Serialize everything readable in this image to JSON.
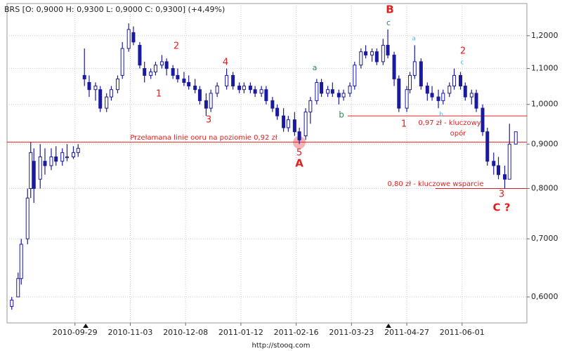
{
  "chart_data": {
    "type": "ohlc",
    "title": "BRS [O: 0,9000  H: 0,9300  L: 0,9000  C: 0,9300] (+4,49%)",
    "footer": "http://stooq.com",
    "color": "#1a1aa0",
    "log_scale": true,
    "grid": true,
    "xlim": [
      "2010-08-17",
      "2011-07-12"
    ],
    "xticks": [
      "2010-09-29",
      "2010-11-03",
      "2010-12-08",
      "2011-01-12",
      "2011-02-16",
      "2011-03-23",
      "2011-04-27",
      "2011-06-01"
    ],
    "ylim": [
      0.56,
      1.307
    ],
    "yticks": [
      {
        "value": 0.6,
        "label": "0,6000"
      },
      {
        "value": 0.7,
        "label": "0,7000"
      },
      {
        "value": 0.8,
        "label": "0,8000"
      },
      {
        "value": 0.9,
        "label": "0,9000"
      },
      {
        "value": 1.0,
        "label": "1,0000"
      },
      {
        "value": 1.1,
        "label": "1,1000"
      },
      {
        "value": 1.2,
        "label": "1,2000"
      }
    ],
    "x": [
      "2010-08-20",
      "2010-08-24",
      "2010-08-26",
      "2010-08-30",
      "2010-09-01",
      "2010-09-03",
      "2010-09-07",
      "2010-09-10",
      "2010-09-14",
      "2010-09-17",
      "2010-09-21",
      "2010-09-24",
      "2010-09-28",
      "2010-10-01",
      "2010-10-05",
      "2010-10-08",
      "2010-10-12",
      "2010-10-15",
      "2010-10-19",
      "2010-10-22",
      "2010-10-26",
      "2010-10-29",
      "2010-11-02",
      "2010-11-05",
      "2010-11-09",
      "2010-11-12",
      "2010-11-16",
      "2010-11-19",
      "2010-11-23",
      "2010-11-26",
      "2010-11-30",
      "2010-12-03",
      "2010-12-07",
      "2010-12-10",
      "2010-12-14",
      "2010-12-17",
      "2010-12-21",
      "2010-12-24",
      "2010-12-28",
      "2011-01-03",
      "2011-01-07",
      "2011-01-11",
      "2011-01-14",
      "2011-01-18",
      "2011-01-21",
      "2011-01-25",
      "2011-01-28",
      "2011-02-01",
      "2011-02-04",
      "2011-02-08",
      "2011-02-11",
      "2011-02-15",
      "2011-02-18",
      "2011-02-22",
      "2011-02-25",
      "2011-03-01",
      "2011-03-04",
      "2011-03-08",
      "2011-03-11",
      "2011-03-15",
      "2011-03-18",
      "2011-03-22",
      "2011-03-25",
      "2011-03-29",
      "2011-04-01",
      "2011-04-05",
      "2011-04-08",
      "2011-04-12",
      "2011-04-15",
      "2011-04-19",
      "2011-04-22",
      "2011-04-27",
      "2011-04-29",
      "2011-05-02",
      "2011-05-06",
      "2011-05-10",
      "2011-05-13",
      "2011-05-17",
      "2011-05-20",
      "2011-05-24",
      "2011-05-27",
      "2011-05-31",
      "2011-06-03",
      "2011-06-07",
      "2011-06-10",
      "2011-06-14",
      "2011-06-17",
      "2011-06-21",
      "2011-06-24",
      "2011-06-28",
      "2011-07-01",
      "2011-07-05"
    ],
    "open": [
      0.585,
      0.6,
      0.63,
      0.7,
      0.8,
      0.86,
      0.82,
      0.86,
      0.85,
      0.87,
      0.86,
      0.87,
      0.87,
      0.88,
      1.08,
      1.06,
      1.04,
      1.04,
      0.99,
      1.02,
      1.04,
      1.08,
      1.16,
      1.21,
      1.17,
      1.1,
      1.08,
      1.09,
      1.11,
      1.12,
      1.1,
      1.08,
      1.07,
      1.06,
      1.05,
      1.04,
      1.01,
      0.99,
      1.03,
      1.05,
      1.08,
      1.05,
      1.04,
      1.05,
      1.04,
      1.03,
      1.04,
      1.01,
      0.99,
      0.97,
      0.94,
      0.96,
      0.93,
      0.92,
      0.98,
      1.01,
      1.06,
      1.03,
      1.04,
      1.03,
      1.02,
      1.03,
      1.05,
      1.11,
      1.15,
      1.14,
      1.15,
      1.12,
      1.17,
      1.14,
      1.07,
      0.99,
      1.04,
      1.08,
      1.12,
      1.05,
      1.03,
      1.02,
      1.01,
      1.03,
      1.05,
      1.08,
      1.05,
      1.02,
      1.03,
      0.99,
      0.93,
      0.86,
      0.85,
      0.83,
      0.82,
      0.9
    ],
    "high": [
      0.6,
      0.64,
      0.7,
      0.8,
      0.905,
      0.89,
      0.9,
      0.89,
      0.89,
      0.895,
      0.89,
      0.9,
      0.895,
      0.9,
      1.16,
      1.08,
      1.06,
      1.05,
      1.03,
      1.05,
      1.08,
      1.18,
      1.24,
      1.23,
      1.18,
      1.12,
      1.1,
      1.12,
      1.14,
      1.13,
      1.11,
      1.1,
      1.09,
      1.08,
      1.07,
      1.05,
      1.03,
      1.04,
      1.06,
      1.1,
      1.09,
      1.06,
      1.06,
      1.06,
      1.05,
      1.05,
      1.05,
      1.02,
      1.0,
      0.99,
      0.97,
      0.98,
      0.94,
      0.99,
      1.02,
      1.07,
      1.07,
      1.05,
      1.06,
      1.04,
      1.04,
      1.06,
      1.12,
      1.16,
      1.17,
      1.16,
      1.16,
      1.19,
      1.22,
      1.15,
      1.08,
      1.05,
      1.09,
      1.17,
      1.13,
      1.06,
      1.05,
      1.04,
      1.04,
      1.06,
      1.1,
      1.09,
      1.06,
      1.04,
      1.04,
      1.0,
      0.94,
      0.88,
      0.87,
      0.85,
      0.95,
      0.93
    ],
    "low": [
      0.58,
      0.6,
      0.62,
      0.69,
      0.78,
      0.77,
      0.8,
      0.83,
      0.84,
      0.85,
      0.85,
      0.86,
      0.865,
      0.87,
      1.05,
      1.02,
      1.01,
      0.98,
      0.98,
      1.01,
      1.03,
      1.07,
      1.15,
      1.17,
      1.1,
      1.06,
      1.07,
      1.08,
      1.1,
      1.08,
      1.07,
      1.06,
      1.05,
      1.04,
      1.03,
      1.0,
      0.97,
      0.98,
      1.02,
      1.04,
      1.04,
      1.03,
      1.03,
      1.03,
      1.02,
      1.02,
      1.0,
      0.98,
      0.96,
      0.93,
      0.93,
      0.92,
      0.9,
      0.91,
      0.95,
      1.0,
      1.02,
      1.02,
      1.02,
      1.0,
      1.01,
      1.02,
      1.04,
      1.1,
      1.13,
      1.12,
      1.11,
      1.11,
      1.13,
      1.05,
      0.98,
      0.98,
      1.03,
      1.07,
      1.04,
      1.01,
      1.01,
      0.99,
      1.0,
      1.02,
      1.04,
      1.04,
      1.01,
      1.0,
      0.98,
      0.92,
      0.85,
      0.83,
      0.82,
      0.8,
      0.82,
      0.9
    ],
    "close": [
      0.595,
      0.63,
      0.69,
      0.78,
      0.88,
      0.8,
      0.87,
      0.85,
      0.87,
      0.86,
      0.88,
      0.87,
      0.88,
      0.89,
      1.07,
      1.04,
      1.05,
      0.99,
      1.02,
      1.04,
      1.07,
      1.16,
      1.22,
      1.18,
      1.11,
      1.08,
      1.09,
      1.11,
      1.12,
      1.1,
      1.08,
      1.07,
      1.06,
      1.05,
      1.04,
      1.01,
      0.99,
      1.03,
      1.05,
      1.08,
      1.05,
      1.04,
      1.05,
      1.04,
      1.03,
      1.04,
      1.01,
      0.99,
      0.97,
      0.94,
      0.96,
      0.93,
      0.91,
      0.98,
      1.01,
      1.06,
      1.03,
      1.04,
      1.03,
      1.02,
      1.03,
      1.05,
      1.11,
      1.15,
      1.14,
      1.15,
      1.12,
      1.17,
      1.14,
      1.07,
      0.99,
      1.04,
      1.08,
      1.12,
      1.05,
      1.03,
      1.02,
      1.01,
      1.03,
      1.05,
      1.08,
      1.05,
      1.02,
      1.03,
      0.99,
      0.93,
      0.86,
      0.85,
      0.83,
      0.82,
      0.9,
      0.93
    ],
    "hlines": [
      0.905,
      0.97,
      0.8
    ],
    "annotations": [
      {
        "text": "B",
        "color": "#e02020"
      },
      {
        "text": "c",
        "color": "#2e8b57"
      },
      {
        "text": "a",
        "color": "#5ab4e6"
      },
      {
        "text": "2",
        "color": "#e02020"
      },
      {
        "text": "c",
        "color": "#5ab4e6"
      },
      {
        "text": "2",
        "color": "#e02020"
      },
      {
        "text": "4",
        "color": "#e02020"
      },
      {
        "text": "a",
        "color": "#2e8b57"
      },
      {
        "text": "1",
        "color": "#e02020"
      },
      {
        "text": "3",
        "color": "#e02020"
      },
      {
        "text": "b",
        "color": "#2e8b57"
      },
      {
        "text": "1",
        "color": "#e02020"
      },
      {
        "text": "b",
        "color": "#5ab4e6"
      },
      {
        "text": "0,97 zł - kluczowy",
        "color": "#e02020"
      },
      {
        "text": "opór",
        "color": "#e02020"
      },
      {
        "text": "Przełamana linie ooru na poziomie 0,92 zł",
        "color": "#e02020"
      },
      {
        "text": "5",
        "color": "#e02020"
      },
      {
        "text": "A",
        "color": "#e02020"
      },
      {
        "text": "0,80 zł - kluczowe wsparcie",
        "color": "#e02020"
      },
      {
        "text": "3",
        "color": "#e02020"
      },
      {
        "text": "C ?",
        "color": "#e02020"
      }
    ]
  }
}
